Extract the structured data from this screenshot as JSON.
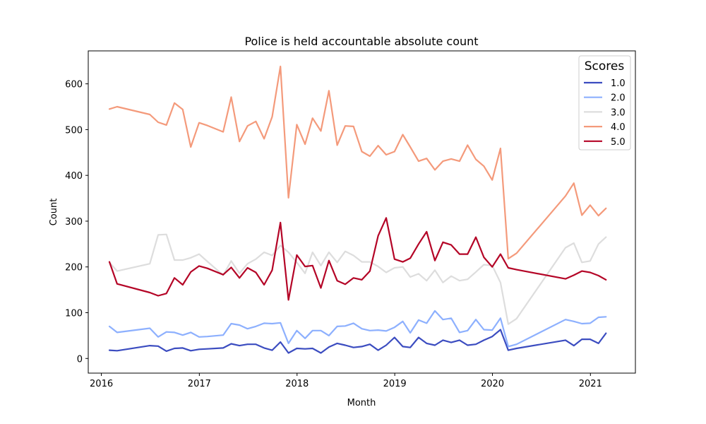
{
  "chart_data": {
    "type": "line",
    "title": "Police is held accountable absolute count",
    "xlabel": "Month",
    "ylabel": "Count",
    "xlim": [
      "2015-11-13",
      "2021-06-18"
    ],
    "ylim": [
      -32,
      672
    ],
    "xticks": [
      {
        "date": "2016-01-01",
        "label": "2016"
      },
      {
        "date": "2017-01-01",
        "label": "2017"
      },
      {
        "date": "2018-01-01",
        "label": "2018"
      },
      {
        "date": "2019-01-01",
        "label": "2019"
      },
      {
        "date": "2020-01-01",
        "label": "2020"
      },
      {
        "date": "2021-01-01",
        "label": "2021"
      }
    ],
    "yticks": [
      0,
      100,
      200,
      300,
      400,
      500,
      600
    ],
    "grid": false,
    "legend": {
      "title": "Scores",
      "placement": "top-right"
    },
    "x": [
      "2016-01-31",
      "2016-02-29",
      "2016-06-30",
      "2016-07-31",
      "2016-08-31",
      "2016-09-30",
      "2016-10-31",
      "2016-11-30",
      "2016-12-31",
      "2017-01-31",
      "2017-03-31",
      "2017-04-30",
      "2017-05-31",
      "2017-06-30",
      "2017-07-31",
      "2017-08-31",
      "2017-09-30",
      "2017-10-31",
      "2017-11-30",
      "2017-12-31",
      "2018-01-31",
      "2018-02-28",
      "2018-03-31",
      "2018-04-30",
      "2018-05-31",
      "2018-06-30",
      "2018-07-31",
      "2018-08-31",
      "2018-09-30",
      "2018-10-31",
      "2018-11-30",
      "2018-12-31",
      "2019-01-31",
      "2019-02-28",
      "2019-03-31",
      "2019-04-30",
      "2019-05-31",
      "2019-06-30",
      "2019-07-31",
      "2019-08-31",
      "2019-09-30",
      "2019-10-31",
      "2019-11-30",
      "2019-12-31",
      "2020-01-31",
      "2020-02-29",
      "2020-03-31",
      "2020-09-30",
      "2020-10-31",
      "2020-11-30",
      "2020-12-31",
      "2021-01-31",
      "2021-02-28"
    ],
    "series": [
      {
        "name": "1.0",
        "color": "#3b4cc0",
        "values": [
          18,
          17,
          28,
          27,
          16,
          22,
          23,
          17,
          20,
          21,
          23,
          32,
          28,
          31,
          31,
          23,
          18,
          36,
          12,
          22,
          21,
          22,
          12,
          25,
          33,
          29,
          24,
          26,
          31,
          18,
          29,
          46,
          26,
          24,
          46,
          33,
          29,
          40,
          35,
          40,
          29,
          31,
          40,
          48,
          63,
          18,
          22,
          40,
          28,
          42,
          42,
          33,
          55
        ]
      },
      {
        "name": "2.0",
        "color": "#8db0fe",
        "values": [
          70,
          57,
          66,
          47,
          58,
          57,
          51,
          57,
          47,
          48,
          51,
          76,
          73,
          65,
          70,
          77,
          76,
          78,
          33,
          61,
          44,
          61,
          61,
          50,
          70,
          71,
          77,
          65,
          61,
          62,
          60,
          68,
          81,
          56,
          84,
          77,
          104,
          85,
          88,
          57,
          61,
          85,
          63,
          62,
          88,
          26,
          31,
          85,
          81,
          76,
          77,
          90,
          91
        ]
      },
      {
        "name": "3.0",
        "color": "#dddddd",
        "values": [
          210,
          191,
          207,
          270,
          271,
          215,
          215,
          220,
          228,
          212,
          182,
          213,
          186,
          207,
          217,
          232,
          225,
          247,
          232,
          210,
          186,
          232,
          203,
          232,
          210,
          234,
          225,
          211,
          211,
          201,
          188,
          198,
          200,
          178,
          185,
          170,
          193,
          166,
          180,
          170,
          173,
          189,
          205,
          203,
          166,
          75,
          87,
          242,
          252,
          210,
          213,
          250,
          265
        ]
      },
      {
        "name": "4.0",
        "color": "#f49a7b",
        "values": [
          545,
          550,
          533,
          516,
          510,
          558,
          544,
          462,
          515,
          509,
          495,
          571,
          474,
          508,
          518,
          480,
          528,
          638,
          351,
          511,
          468,
          525,
          497,
          585,
          466,
          508,
          507,
          452,
          442,
          465,
          445,
          452,
          489,
          462,
          431,
          437,
          412,
          431,
          436,
          431,
          466,
          435,
          420,
          390,
          459,
          218,
          230,
          355,
          383,
          313,
          335,
          312,
          328
        ]
      },
      {
        "name": "5.0",
        "color": "#b40426",
        "values": [
          211,
          163,
          144,
          137,
          142,
          176,
          161,
          189,
          202,
          197,
          183,
          199,
          176,
          198,
          188,
          161,
          193,
          297,
          128,
          226,
          201,
          203,
          154,
          214,
          170,
          162,
          176,
          172,
          191,
          268,
          307,
          217,
          211,
          219,
          250,
          277,
          214,
          254,
          248,
          228,
          228,
          265,
          221,
          200,
          228,
          198,
          194,
          174,
          182,
          191,
          188,
          181,
          172
        ]
      }
    ]
  }
}
